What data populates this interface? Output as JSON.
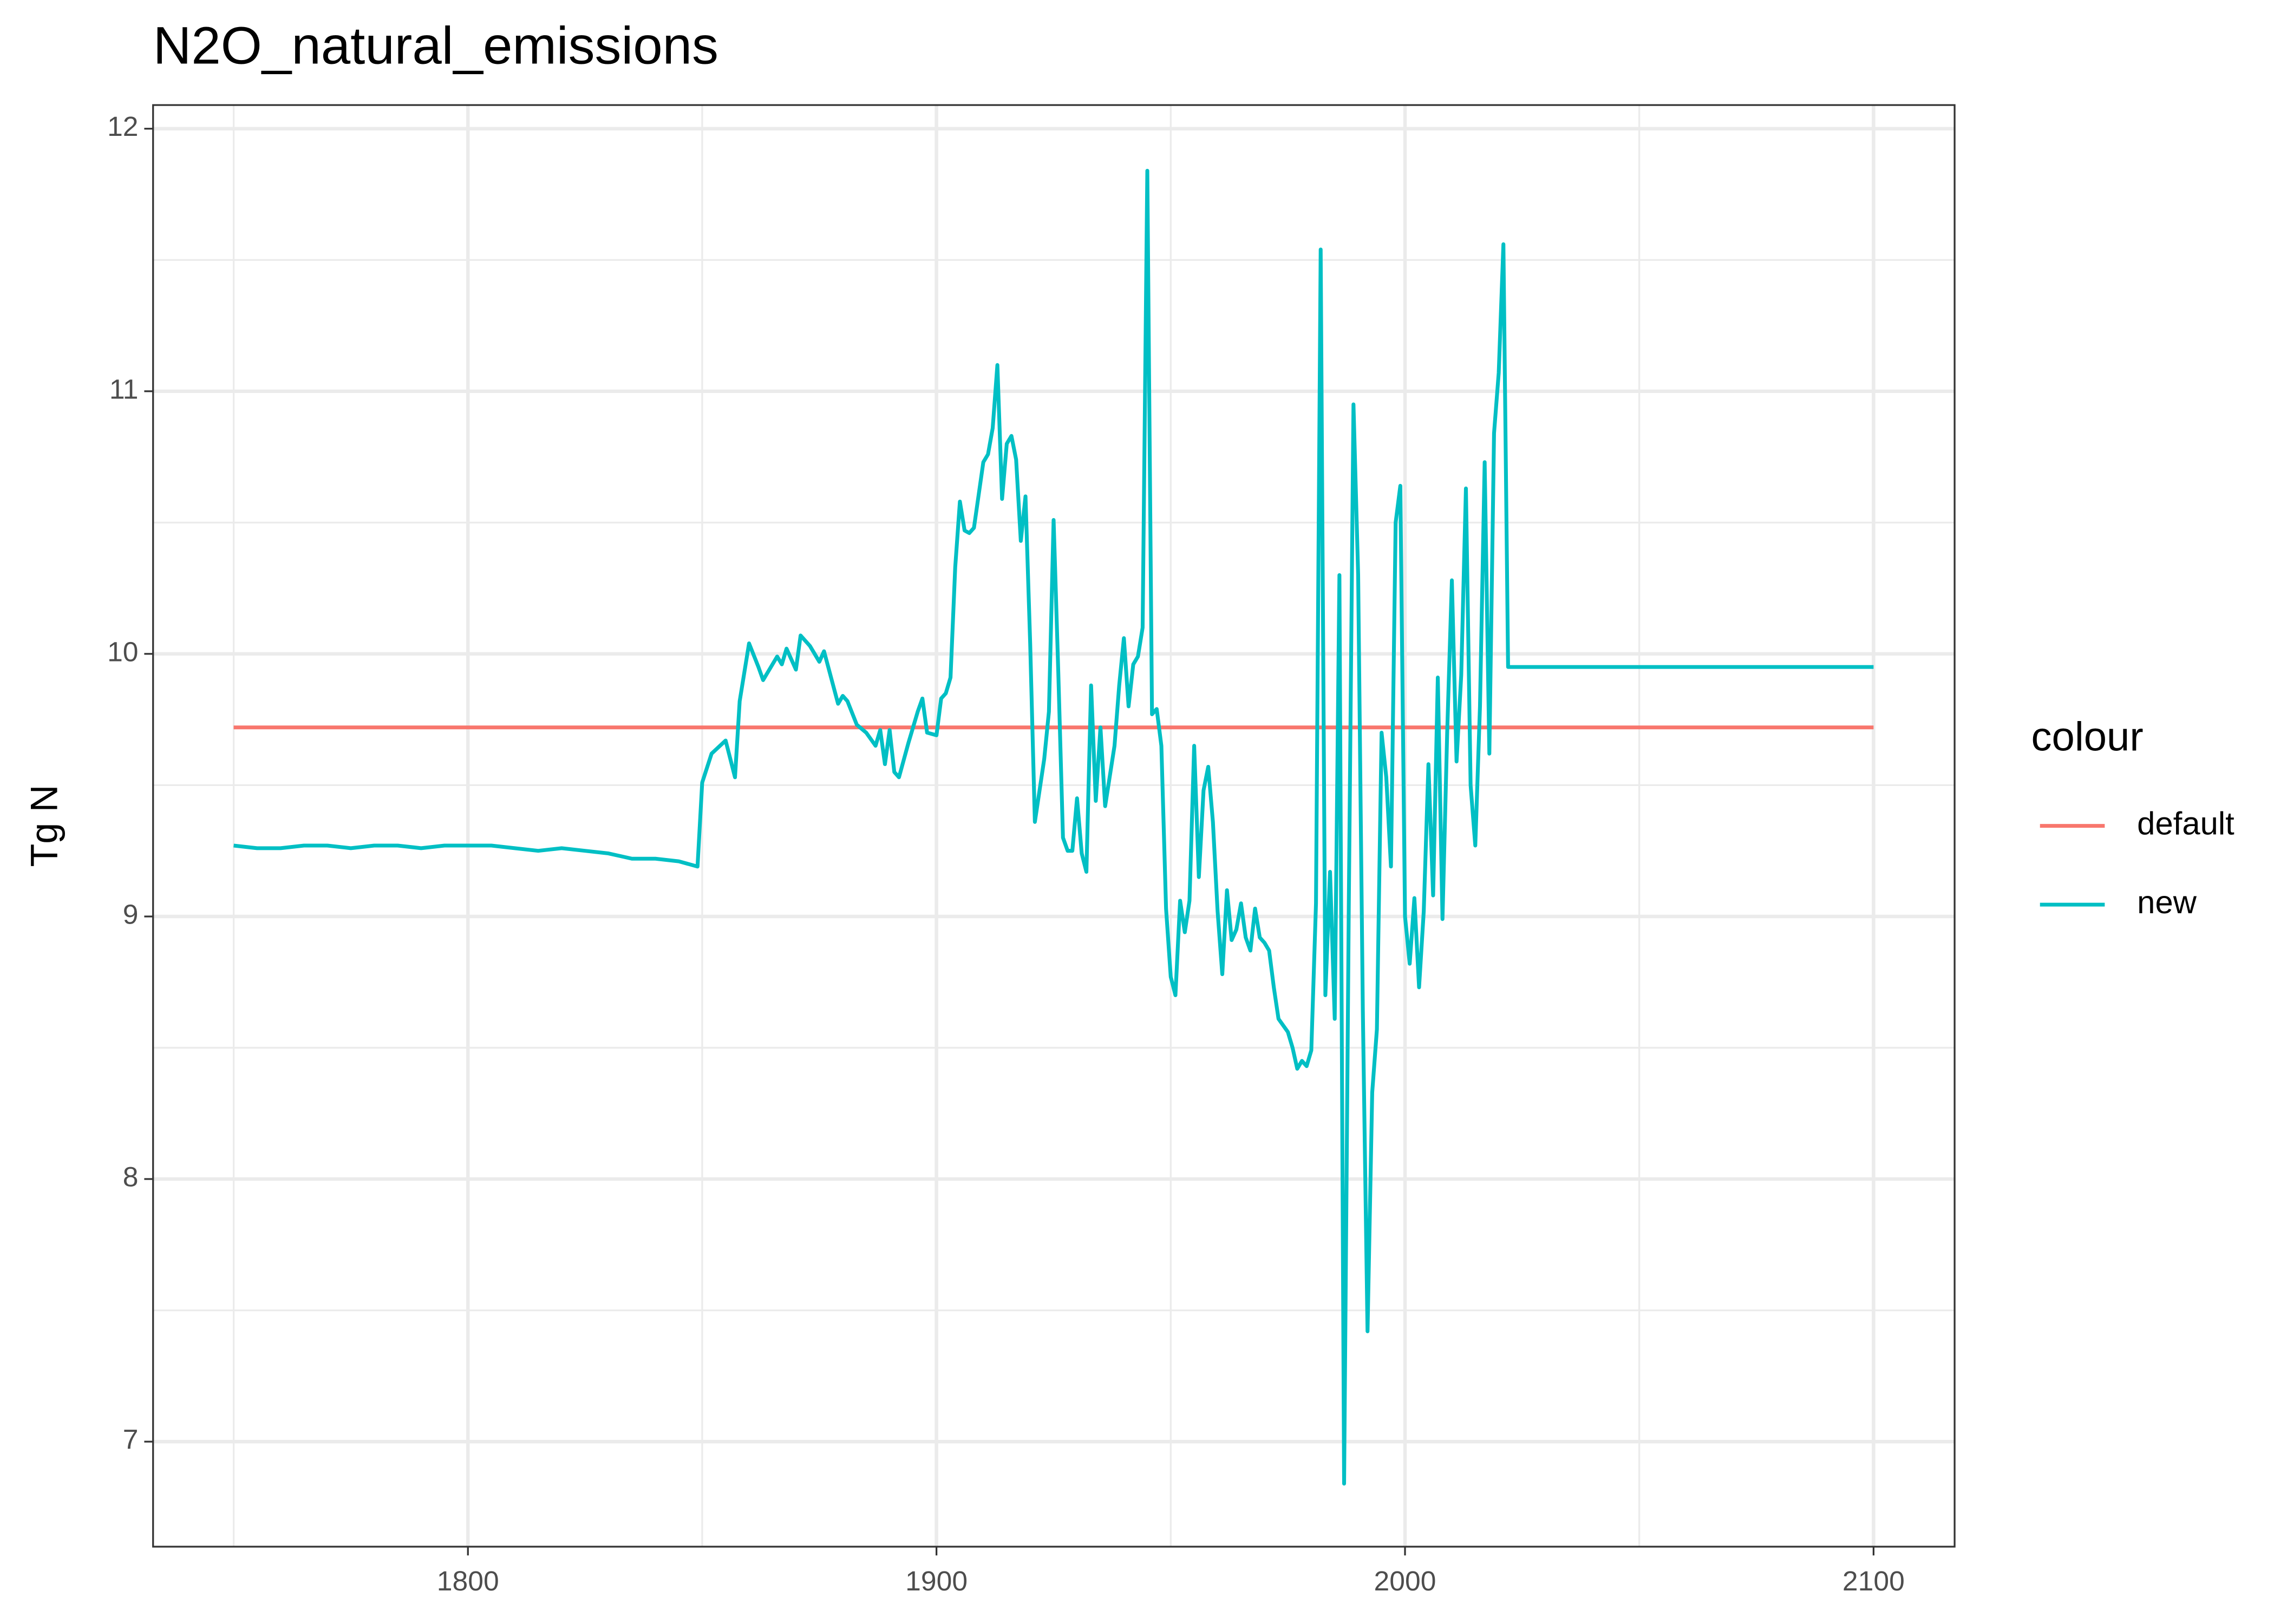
{
  "chart_data": {
    "type": "line",
    "title": "N2O_natural_emissions",
    "y_label": "Tg N",
    "legend_title": "colour",
    "legend_position": "right",
    "grid": true,
    "xlim": [
      1732.8,
      2117.3
    ],
    "xticks": [
      1800,
      1900,
      2000,
      2100
    ],
    "ylim": [
      6.6,
      12.09
    ],
    "yticks": [
      7,
      8,
      9,
      10,
      11,
      12
    ],
    "series": [
      {
        "name": "default",
        "color": "#f8766d",
        "x": [
          1750,
          2100
        ],
        "values": [
          9.72,
          9.72
        ]
      },
      {
        "name": "new",
        "color": "#00bfc4",
        "x": [
          1750,
          1755,
          1760,
          1765,
          1770,
          1775,
          1780,
          1785,
          1790,
          1795,
          1800,
          1805,
          1810,
          1815,
          1820,
          1825,
          1830,
          1835,
          1840,
          1845,
          1849,
          1850,
          1852,
          1855,
          1857,
          1858,
          1860,
          1862,
          1863,
          1866,
          1867,
          1868,
          1870,
          1871,
          1873,
          1875,
          1876,
          1879,
          1880,
          1881,
          1883,
          1885,
          1887,
          1888,
          1889,
          1890,
          1891,
          1892,
          1894,
          1896,
          1897,
          1898,
          1900,
          1901,
          1902,
          1903,
          1904,
          1905,
          1906,
          1907,
          1908,
          1910,
          1911,
          1912,
          1913,
          1914,
          1915,
          1916,
          1917,
          1918,
          1919,
          1920,
          1921,
          1923,
          1924,
          1925,
          1926,
          1927,
          1928,
          1929,
          1930,
          1931,
          1932,
          1933,
          1934,
          1935,
          1936,
          1938,
          1939,
          1940,
          1941,
          1942,
          1943,
          1944,
          1945,
          1946,
          1947,
          1948,
          1949,
          1950,
          1951,
          1952,
          1953,
          1954,
          1955,
          1956,
          1957,
          1958,
          1959,
          1960,
          1961,
          1962,
          1963,
          1964,
          1965,
          1966,
          1967,
          1968,
          1969,
          1970,
          1971,
          1972,
          1973,
          1975,
          1976,
          1977,
          1978,
          1979,
          1980,
          1981,
          1982,
          1983,
          1984,
          1985,
          1986,
          1987,
          1988,
          1989,
          1990,
          1991,
          1992,
          1993,
          1994,
          1995,
          1996,
          1997,
          1998,
          1999,
          2000,
          2001,
          2002,
          2003,
          2004,
          2005,
          2006,
          2007,
          2008,
          2009,
          2010,
          2011,
          2012,
          2013,
          2014,
          2015,
          2016,
          2017,
          2018,
          2019,
          2020,
          2021,
          2022,
          2100
        ],
        "values": [
          9.27,
          9.26,
          9.26,
          9.27,
          9.27,
          9.26,
          9.27,
          9.27,
          9.26,
          9.27,
          9.27,
          9.27,
          9.26,
          9.25,
          9.26,
          9.25,
          9.24,
          9.22,
          9.22,
          9.21,
          9.19,
          9.51,
          9.62,
          9.67,
          9.53,
          9.82,
          10.04,
          9.95,
          9.9,
          9.99,
          9.96,
          10.02,
          9.94,
          10.07,
          10.03,
          9.97,
          10.01,
          9.81,
          9.84,
          9.82,
          9.73,
          9.7,
          9.65,
          9.71,
          9.58,
          9.71,
          9.55,
          9.53,
          9.66,
          9.78,
          9.83,
          9.7,
          9.69,
          9.83,
          9.85,
          9.91,
          10.33,
          10.58,
          10.47,
          10.46,
          10.48,
          10.73,
          10.76,
          10.86,
          11.1,
          10.59,
          10.8,
          10.83,
          10.74,
          10.43,
          10.6,
          10.04,
          9.36,
          9.6,
          9.78,
          10.51,
          9.93,
          9.3,
          9.25,
          9.25,
          9.45,
          9.24,
          9.17,
          9.88,
          9.44,
          9.72,
          9.42,
          9.65,
          9.88,
          10.06,
          9.8,
          9.96,
          9.99,
          10.1,
          11.84,
          9.77,
          9.79,
          9.65,
          9.03,
          8.77,
          8.7,
          9.06,
          8.94,
          9.06,
          9.65,
          9.15,
          9.48,
          9.57,
          9.36,
          9.02,
          8.78,
          9.1,
          8.91,
          8.95,
          9.05,
          8.92,
          8.87,
          9.03,
          8.92,
          8.9,
          8.87,
          8.73,
          8.61,
          8.56,
          8.5,
          8.42,
          8.45,
          8.43,
          8.49,
          9.05,
          11.54,
          8.7,
          9.17,
          8.61,
          10.3,
          6.84,
          9.04,
          10.95,
          10.3,
          8.64,
          7.42,
          8.33,
          8.57,
          9.7,
          9.53,
          9.19,
          10.5,
          10.64,
          9.0,
          8.82,
          9.07,
          8.73,
          9.02,
          9.58,
          9.08,
          9.91,
          8.99,
          9.7,
          10.28,
          9.59,
          9.92,
          10.63,
          9.5,
          9.27,
          9.8,
          10.73,
          9.62,
          10.84,
          11.07,
          11.56,
          9.95,
          9.95
        ]
      }
    ]
  }
}
